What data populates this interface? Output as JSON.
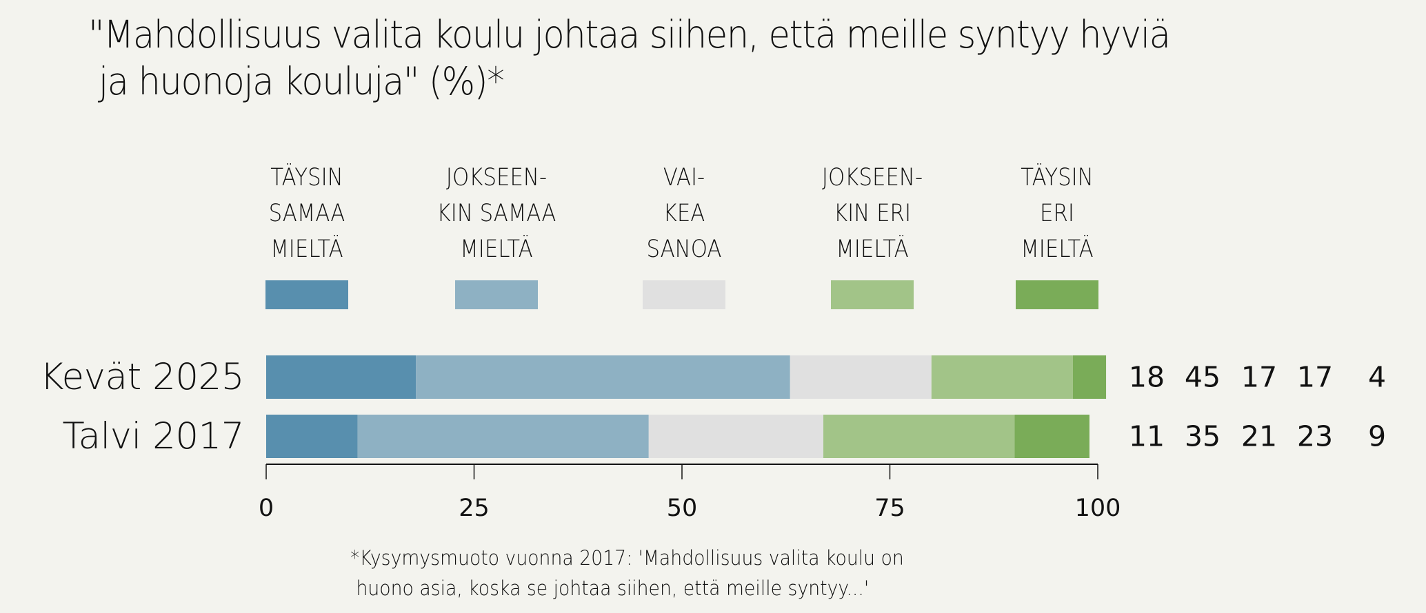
{
  "chart_data": {
    "type": "bar",
    "orientation": "horizontal",
    "stacked": true,
    "title": "\"Mahdollisuus valita koulu johtaa siihen, että meille syntyy hyviä\n ja huonoja kouluja\" (%)*",
    "categories": [
      "Kevät 2025",
      "Talvi 2017"
    ],
    "series": [
      {
        "name": "TÄYSIN\nSAMAA\nMIELTÄ",
        "color": "#588fae",
        "values": [
          18,
          11
        ]
      },
      {
        "name": "JOKSEEN-\nKIN SAMAA\nMIELTÄ",
        "color": "#8eb1c3",
        "values": [
          45,
          35
        ]
      },
      {
        "name": "VAI-\nKEA\nSANOA",
        "color": "#e0e0e0",
        "values": [
          17,
          21
        ]
      },
      {
        "name": "JOKSEEN-\nKIN ERI\nMIELTÄ",
        "color": "#a2c488",
        "values": [
          17,
          23
        ]
      },
      {
        "name": "TÄYSIN\nERI\nMIELTÄ",
        "color": "#7aac58",
        "values": [
          4,
          9
        ]
      }
    ],
    "xlim": [
      0,
      100
    ],
    "xticks": [
      0,
      25,
      50,
      75,
      100
    ],
    "xtick_labels": [
      "0",
      "25",
      "50",
      "75",
      "100"
    ],
    "xlabel": "",
    "ylabel": "",
    "grid": false,
    "legend_position": "top",
    "data_labels_position": "right",
    "footnote": "*Kysymysmuoto vuonna 2017: 'Mahdollisuus valita koulu on\n huono asia, koska se johtaa siihen, että meille syntyy...'"
  }
}
